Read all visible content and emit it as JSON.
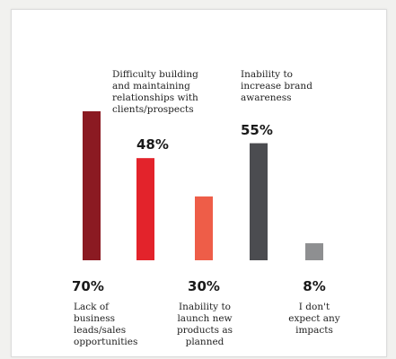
{
  "chart_data": {
    "type": "bar",
    "ylim": [
      0,
      80
    ],
    "categories": [
      "Lack of business leads/sales opportunities",
      "Difficulty building and maintaining relationships with clients/prospects",
      "Inability to launch new products as planned",
      "Inability to increase brand awareness",
      "I don't expect any impacts"
    ],
    "values": [
      70,
      48,
      30,
      55,
      8
    ],
    "value_labels": [
      "70%",
      "48%",
      "30%",
      "55%",
      "8%"
    ],
    "label_lines": [
      [
        "Lack of",
        "business",
        "leads/sales",
        "opportunities"
      ],
      [
        "Difficulty building",
        "and maintaining",
        "relationships with",
        "clients/prospects"
      ],
      [
        "Inability to",
        "launch new",
        "products as",
        "planned"
      ],
      [
        "Inability to",
        "increase brand",
        "awareness"
      ],
      [
        "I don't",
        "expect any",
        "impacts"
      ]
    ],
    "colors": [
      "#8b1a22",
      "#e3232b",
      "#ee5d48",
      "#4b4c50",
      "#8e8f91"
    ]
  }
}
